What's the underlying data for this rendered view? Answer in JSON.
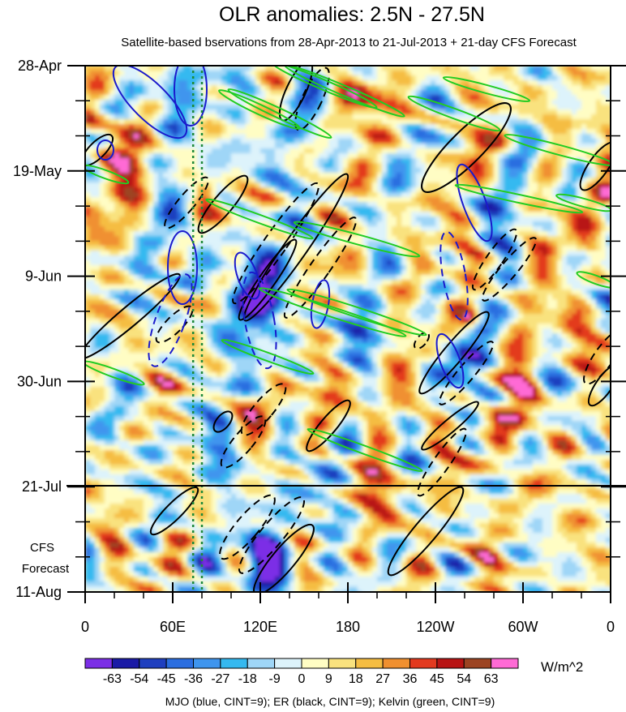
{
  "chart_data": {
    "type": "heatmap",
    "title": "OLR anomalies: 2.5N - 27.5N",
    "subtitle": "Satellite-based bservations from 28-Apr-2013 to 21-Jul-2013 + 21-day CFS Forecast",
    "x_ticks": [
      "0",
      "60E",
      "120E",
      "180",
      "120W",
      "60W",
      "0"
    ],
    "x_range_deg": [
      0,
      360
    ],
    "y_ticks": [
      "28-Apr",
      "19-May",
      "9-Jun",
      "30-Jun",
      "21-Jul",
      "11-Aug"
    ],
    "y_range_days": [
      0,
      105
    ],
    "observation_end": "21-Jul",
    "forecast_label_line1": "CFS",
    "forecast_label_line2": "Forecast",
    "colorbar_levels": [
      "-63",
      "-54",
      "-45",
      "-36",
      "-27",
      "-18",
      "-9",
      "0",
      "9",
      "18",
      "27",
      "36",
      "45",
      "54",
      "63"
    ],
    "colorbar_colors": [
      "#7b2ee6",
      "#1a1aa6",
      "#1f3fbf",
      "#2b6ee0",
      "#3f95ee",
      "#35b9f0",
      "#9fd6f7",
      "#ddf3fb",
      "#fffdc4",
      "#f9e27e",
      "#f5bd42",
      "#f09030",
      "#e33a1f",
      "#b81414",
      "#9c4422",
      "#ff6ad5"
    ],
    "units": "W/m^2",
    "footnote": "MJO (blue, CINT=9); ER (black, CINT=9); Kelvin (green, CINT=9)",
    "overlay_colors": {
      "mjo": "#1a1acc",
      "er": "#000000",
      "kelvin": "#22cc22",
      "reference_lines": "#1f8a3a"
    },
    "reference_longitudes_deg": [
      74,
      80
    ]
  }
}
